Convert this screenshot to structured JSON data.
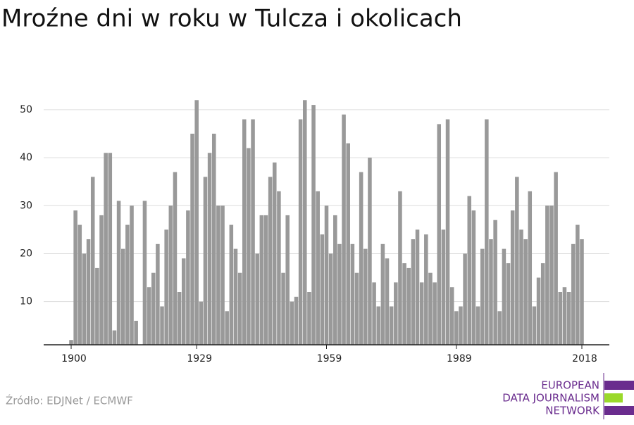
{
  "chart_data": {
    "type": "bar",
    "title": "Mroźne dni w roku w Tulcza i okolicach",
    "source": "Źródło: EDJNet / ECMWF",
    "logo": [
      "EUROPEAN",
      "DATA JOURNALISM",
      "NETWORK"
    ],
    "color": "#999999",
    "x": [
      1900,
      1901,
      1902,
      1903,
      1904,
      1905,
      1906,
      1907,
      1908,
      1909,
      1910,
      1911,
      1912,
      1913,
      1914,
      1915,
      1916,
      1917,
      1918,
      1919,
      1920,
      1921,
      1922,
      1923,
      1924,
      1925,
      1926,
      1927,
      1928,
      1929,
      1930,
      1931,
      1932,
      1933,
      1934,
      1935,
      1936,
      1937,
      1938,
      1939,
      1940,
      1941,
      1942,
      1943,
      1944,
      1945,
      1946,
      1947,
      1948,
      1949,
      1950,
      1951,
      1952,
      1953,
      1954,
      1955,
      1956,
      1957,
      1958,
      1959,
      1960,
      1961,
      1962,
      1963,
      1964,
      1965,
      1966,
      1967,
      1968,
      1969,
      1970,
      1971,
      1972,
      1973,
      1974,
      1975,
      1976,
      1977,
      1978,
      1979,
      1980,
      1981,
      1982,
      1983,
      1984,
      1985,
      1986,
      1987,
      1988,
      1989,
      1990,
      1991,
      1992,
      1993,
      1994,
      1995,
      1996,
      1997,
      1998,
      1999,
      2000,
      2001,
      2002,
      2003,
      2004,
      2005,
      2006,
      2007,
      2008,
      2009,
      2010,
      2011,
      2012,
      2013,
      2014,
      2015,
      2016,
      2017,
      2018
    ],
    "values": [
      2,
      29,
      26,
      20,
      23,
      36,
      17,
      28,
      41,
      41,
      4,
      31,
      21,
      26,
      30,
      6,
      null,
      31,
      13,
      16,
      22,
      9,
      25,
      30,
      37,
      12,
      19,
      29,
      45,
      52,
      10,
      36,
      41,
      45,
      30,
      30,
      8,
      26,
      21,
      16,
      48,
      42,
      48,
      20,
      28,
      28,
      36,
      39,
      33,
      16,
      28,
      10,
      11,
      48,
      52,
      12,
      51,
      33,
      24,
      30,
      20,
      28,
      22,
      49,
      43,
      22,
      16,
      37,
      21,
      40,
      14,
      9,
      22,
      19,
      9,
      14,
      33,
      18,
      17,
      23,
      25,
      14,
      24,
      16,
      14,
      47,
      25,
      48,
      13,
      8,
      9,
      20,
      32,
      29,
      9,
      21,
      48,
      23,
      27,
      8,
      21,
      18,
      29,
      36,
      25,
      23,
      33,
      9,
      15,
      18,
      30,
      30,
      37,
      12,
      13,
      12,
      22,
      26,
      23
    ],
    "xlim": [
      1900,
      2018
    ],
    "xticks": [
      1900,
      1929,
      1959,
      1989,
      2018
    ],
    "ylim": [
      1,
      56
    ],
    "yticks": [
      10,
      20,
      30,
      40,
      50
    ],
    "grid": true
  }
}
